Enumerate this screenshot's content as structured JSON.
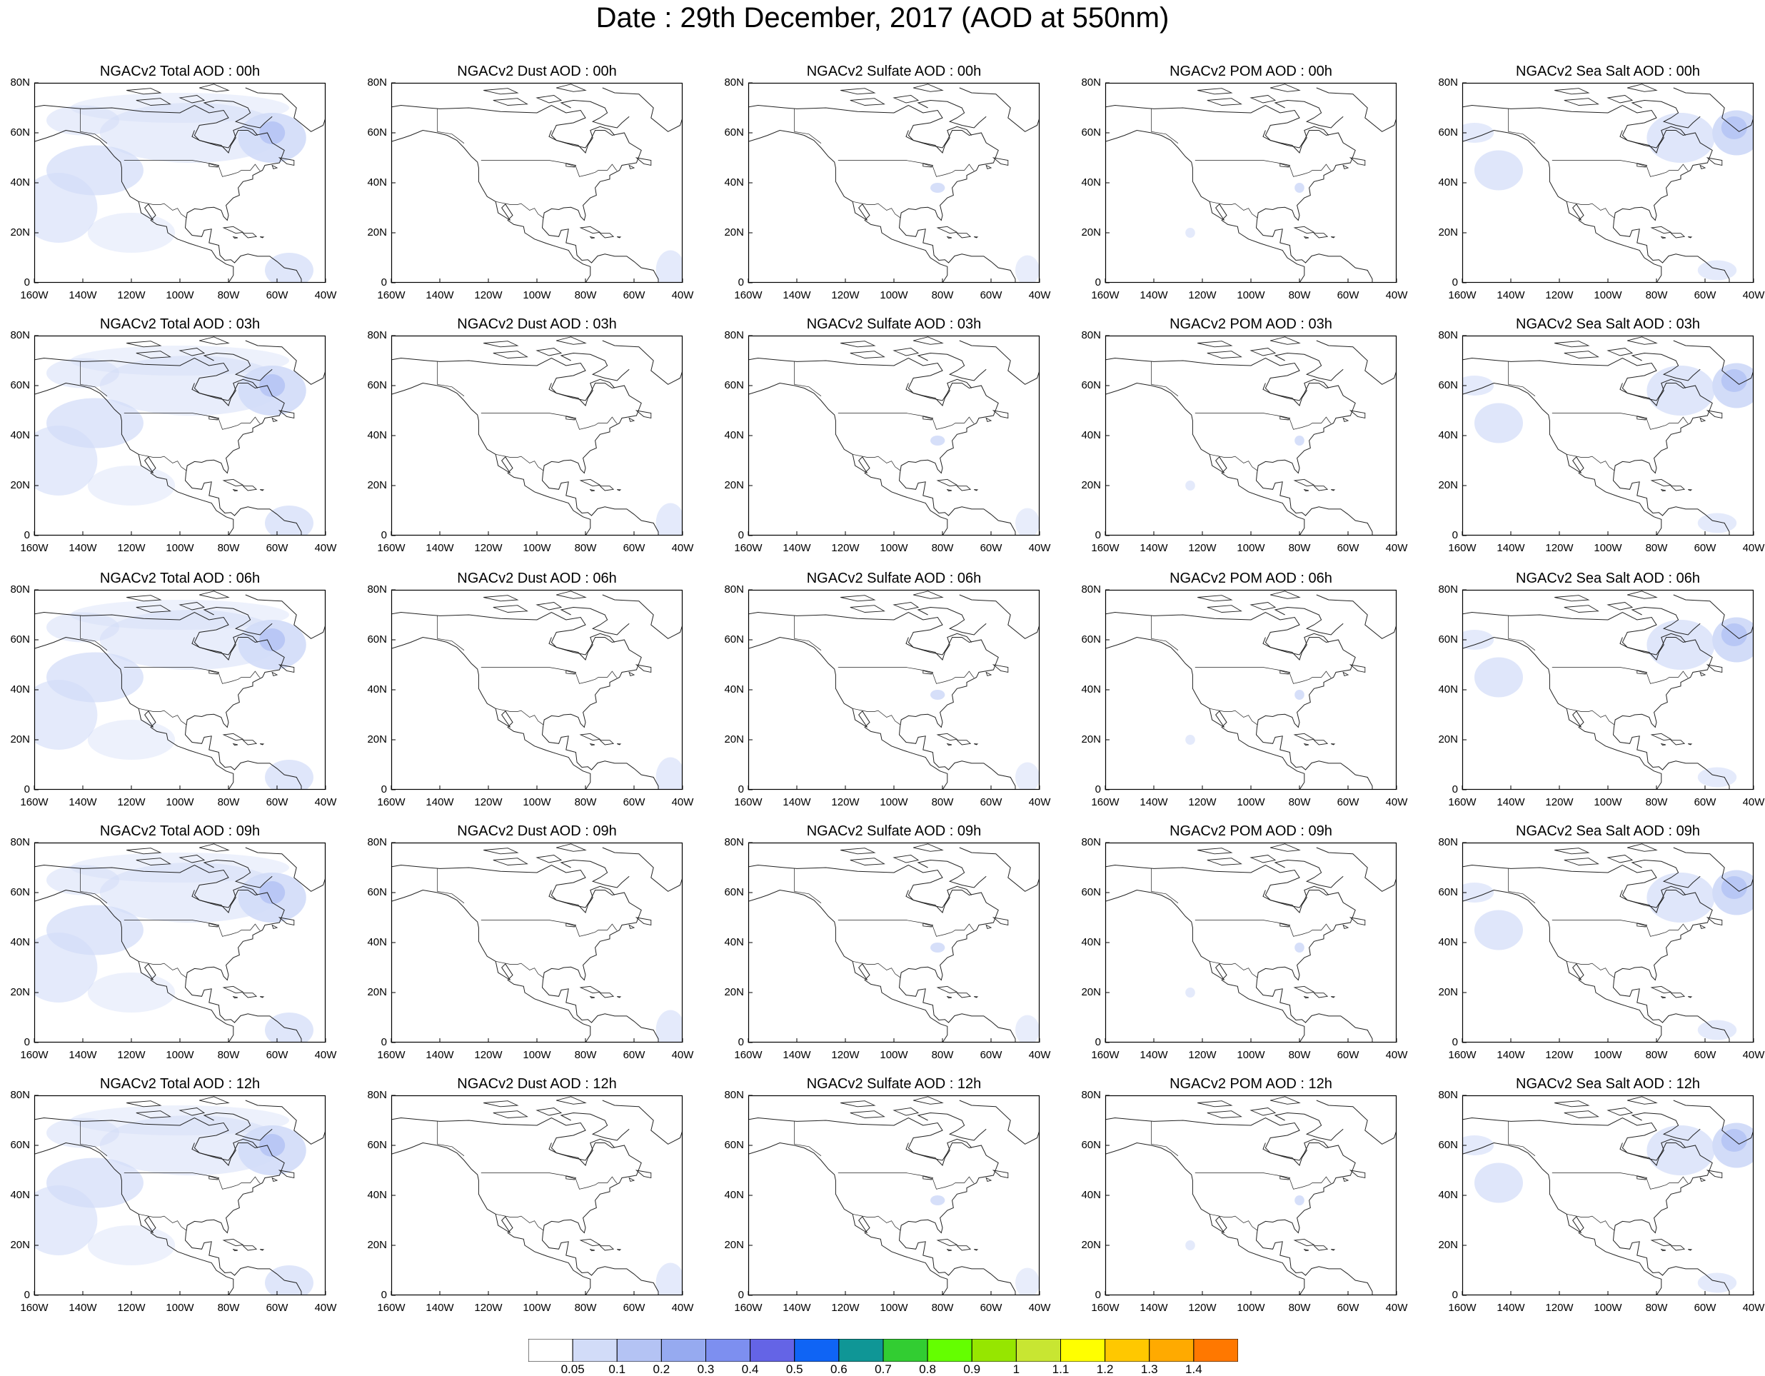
{
  "title": "Date : 29th December, 2017 (AOD at 550nm)",
  "panels": [
    "NGACv2 Total AOD : 00h",
    "NGACv2 Dust AOD : 00h",
    "NGACv2 Sulfate AOD : 00h",
    "NGACv2 POM AOD : 00h",
    "NGACv2 Sea Salt AOD : 00h",
    "NGACv2 Total AOD : 03h",
    "NGACv2 Dust AOD : 03h",
    "NGACv2 Sulfate AOD : 03h",
    "NGACv2 POM AOD : 03h",
    "NGACv2 Sea Salt AOD : 03h",
    "NGACv2 Total AOD : 06h",
    "NGACv2 Dust AOD : 06h",
    "NGACv2 Sulfate AOD : 06h",
    "NGACv2 POM AOD : 06h",
    "NGACv2 Sea Salt AOD : 06h",
    "NGACv2 Total AOD : 09h",
    "NGACv2 Dust AOD : 09h",
    "NGACv2 Sulfate AOD : 09h",
    "NGACv2 POM AOD : 09h",
    "NGACv2 Sea Salt  AOD : 09h",
    "NGACv2 Total AOD  : 12h",
    "NGACv2 Dust AOD : 12h",
    "NGACv2 Sulfate AOD : 12h",
    "NGACv2 POM  AOD : 12h",
    "NGACv2 Sea Salt  AOD : 12h"
  ],
  "axes": {
    "y_ticks": [
      "80N",
      "60N",
      "40N",
      "20N",
      "0"
    ],
    "x_ticks": [
      "160W",
      "140W",
      "120W",
      "100W",
      "80W",
      "60W",
      "40W"
    ],
    "lon_range": [
      -160,
      -40
    ],
    "lat_range": [
      0,
      80
    ]
  },
  "colorbar": {
    "labels": [
      "0.05",
      "0.1",
      "0.2",
      "0.3",
      "0.4",
      "0.5",
      "0.6",
      "0.7",
      "0.8",
      "0.9",
      "1",
      "1.1",
      "1.2",
      "1.3",
      "1.4"
    ],
    "colors": [
      "#ffffff",
      "#d2dcf8",
      "#b4c3f4",
      "#96aaf0",
      "#7d8ff0",
      "#6464e6",
      "#0f64f5",
      "#0f9696",
      "#32cd32",
      "#64ff00",
      "#96e600",
      "#c8e632",
      "#ffff00",
      "#ffc800",
      "#ffaa00",
      "#ff7800",
      "#ff1e00"
    ]
  }
}
